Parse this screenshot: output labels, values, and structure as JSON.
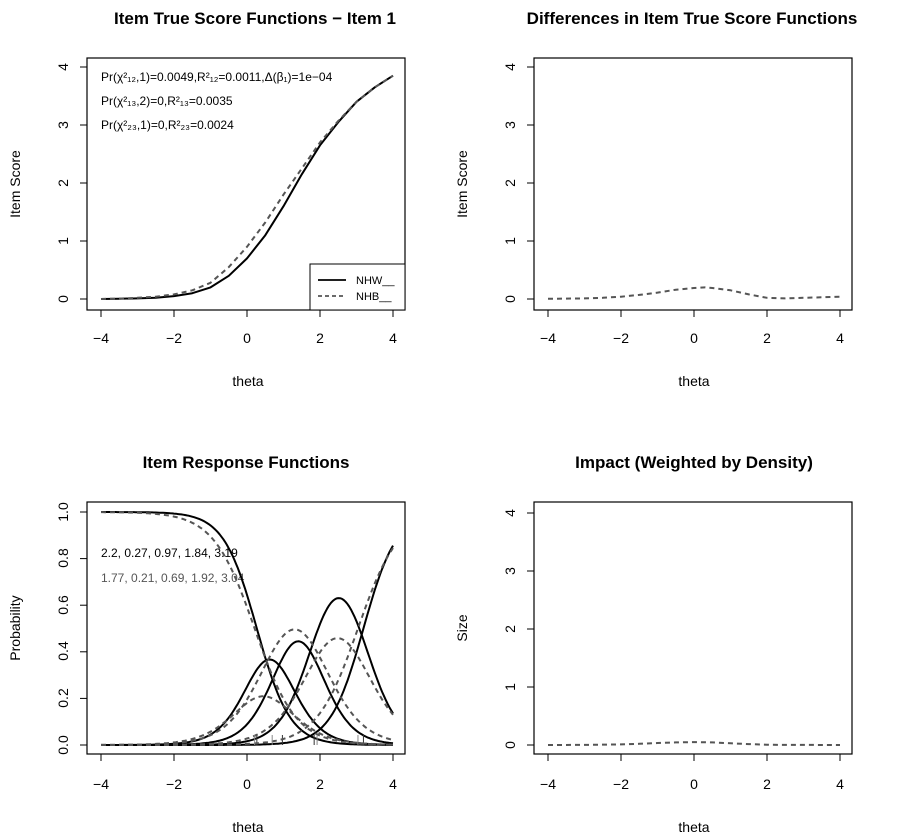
{
  "chart_data": [
    {
      "id": "p1",
      "type": "line",
      "title": "Item True Score Functions − Item 1",
      "xlabel": "theta",
      "ylabel": "Item Score",
      "xlim": [
        -4,
        4
      ],
      "ylim": [
        0,
        4
      ],
      "xticks": [
        "−4",
        "−2",
        "0",
        "2",
        "4"
      ],
      "yticks": [
        "0",
        "1",
        "2",
        "3",
        "4"
      ],
      "annotations": [
        "Pr(χ²₁₂,1)=0.0049,R²₁₂=0.0011,Δ(β₁)=1e−04",
        "Pr(χ²₁₃,2)=0,R²₁₃=0.0035",
        "Pr(χ²₂₃,1)=0,R²₂₃=0.0024"
      ],
      "legend_position": "bottom-right",
      "series": [
        {
          "name": "NHW__",
          "style": "solid",
          "color": "#000000",
          "x": [
            -4,
            -3.5,
            -3,
            -2.5,
            -2,
            -1.5,
            -1,
            -0.5,
            0,
            0.5,
            1,
            1.5,
            2,
            2.5,
            3,
            3.5,
            4
          ],
          "y": [
            0,
            0.005,
            0.01,
            0.02,
            0.05,
            0.1,
            0.2,
            0.4,
            0.7,
            1.1,
            1.6,
            2.15,
            2.65,
            3.05,
            3.4,
            3.65,
            3.85
          ]
        },
        {
          "name": "NHB__",
          "style": "dashed",
          "color": "#555555",
          "x": [
            -4,
            -3.5,
            -3,
            -2.5,
            -2,
            -1.5,
            -1,
            -0.5,
            0,
            0.5,
            1,
            1.5,
            2,
            2.5,
            3,
            3.5,
            4
          ],
          "y": [
            0,
            0.007,
            0.02,
            0.04,
            0.08,
            0.15,
            0.28,
            0.55,
            0.9,
            1.32,
            1.8,
            2.25,
            2.7,
            3.07,
            3.4,
            3.65,
            3.85
          ]
        }
      ]
    },
    {
      "id": "p2",
      "type": "line",
      "title": "Differences in Item True Score Functions",
      "xlabel": "theta",
      "ylabel": "Item Score",
      "xlim": [
        -4,
        4
      ],
      "ylim": [
        0,
        4
      ],
      "xticks": [
        "−4",
        "−2",
        "0",
        "2",
        "4"
      ],
      "yticks": [
        "0",
        "1",
        "2",
        "3",
        "4"
      ],
      "series": [
        {
          "style": "dashed",
          "color": "#555555",
          "x": [
            -4,
            -3,
            -2.5,
            -2,
            -1.5,
            -1,
            -0.5,
            0,
            0.3,
            0.5,
            1,
            1.5,
            2,
            2.5,
            3,
            3.5,
            4
          ],
          "y": [
            0.003,
            0.01,
            0.02,
            0.04,
            0.07,
            0.11,
            0.16,
            0.19,
            0.2,
            0.19,
            0.15,
            0.08,
            0.02,
            0.01,
            0.02,
            0.03,
            0.04
          ]
        }
      ]
    },
    {
      "id": "p3",
      "type": "line",
      "title": "Item Response Functions",
      "xlabel": "theta",
      "ylabel": "Probability",
      "xlim": [
        -4,
        4
      ],
      "ylim": [
        0,
        1
      ],
      "xticks": [
        "−4",
        "−2",
        "0",
        "2",
        "4"
      ],
      "yticks": [
        "0.0",
        "0.2",
        "0.4",
        "0.6",
        "0.8",
        "1.0"
      ],
      "annotations": [
        "2.2, 0.27, 0.97, 1.84, 3.19",
        "1.77, 0.21, 0.69, 1.92, 3.04"
      ],
      "groups": [
        {
          "a": 2.2,
          "b": [
            0.27,
            0.97,
            1.84,
            3.19
          ],
          "style": "solid",
          "color": "#000000"
        },
        {
          "a": 1.77,
          "b": [
            0.21,
            0.69,
            1.92,
            3.04
          ],
          "style": "dashed",
          "color": "#555555"
        }
      ]
    },
    {
      "id": "p4",
      "type": "line",
      "title": "Impact (Weighted by Density)",
      "xlabel": "theta",
      "ylabel": "Size",
      "xlim": [
        -4,
        4
      ],
      "ylim": [
        0,
        4
      ],
      "xticks": [
        "−4",
        "−2",
        "0",
        "2",
        "4"
      ],
      "yticks": [
        "0",
        "1",
        "2",
        "3",
        "4"
      ],
      "series": [
        {
          "style": "dashed",
          "color": "#555555",
          "x": [
            -4,
            -3,
            -2,
            -1.5,
            -1,
            -0.5,
            0,
            0.5,
            1,
            1.5,
            2,
            2.5,
            3,
            4
          ],
          "y": [
            0,
            0.002,
            0.01,
            0.02,
            0.035,
            0.045,
            0.05,
            0.045,
            0.03,
            0.015,
            0.005,
            0.002,
            0.001,
            0
          ]
        }
      ]
    }
  ]
}
